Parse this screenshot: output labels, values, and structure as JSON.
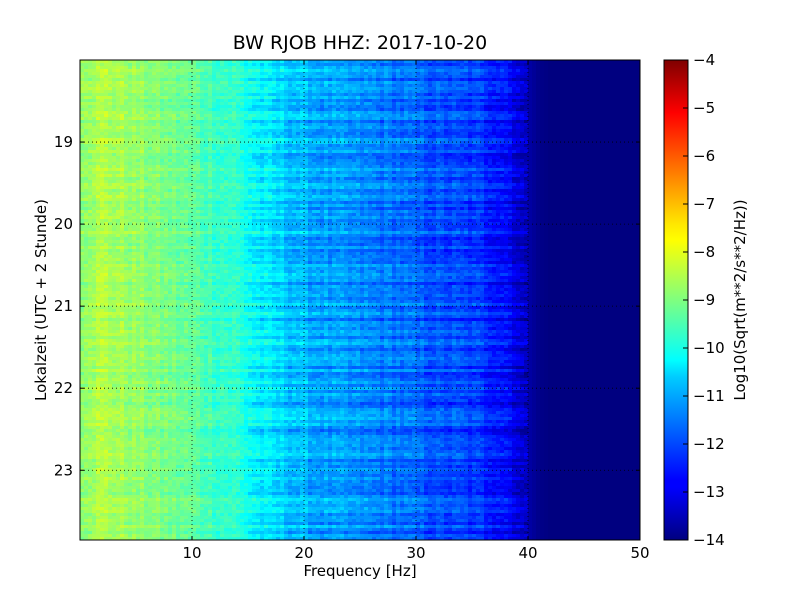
{
  "chart_data": {
    "type": "heatmap",
    "title": "BW RJOB HHZ: 2017-10-20",
    "xlabel": "Frequency [Hz]",
    "ylabel": "Lokalzeit (UTC + 2 Stunde)",
    "xlim": [
      0,
      50
    ],
    "ylim": [
      18.0,
      23.85
    ],
    "y_inverted": true,
    "grid": true,
    "x_ticks": [
      10,
      20,
      30,
      40,
      50
    ],
    "y_ticks": [
      19,
      20,
      21,
      22,
      23
    ],
    "colormap": "jet",
    "colorbar": {
      "label": "Log10(Sqrt(m**2/s**2/Hz))",
      "range": [
        -14,
        -4
      ],
      "ticks": [
        -4,
        -5,
        -6,
        -7,
        -8,
        -9,
        -10,
        -11,
        -12,
        -13,
        -14
      ]
    },
    "spectral_profile": {
      "frequencies_hz": [
        0,
        2,
        5,
        8,
        10,
        12,
        14,
        15,
        16,
        18,
        20,
        22,
        25,
        28,
        30,
        32,
        34,
        36,
        38,
        39,
        40,
        41,
        42,
        45,
        50
      ],
      "log10_amplitude": [
        -8.7,
        -8.5,
        -8.8,
        -9.1,
        -9.3,
        -9.6,
        -9.8,
        -10.1,
        -10.4,
        -10.7,
        -11.0,
        -11.2,
        -11.4,
        -11.6,
        -11.8,
        -12.0,
        -12.1,
        -12.3,
        -12.6,
        -13.0,
        -13.6,
        -13.9,
        -14.0,
        -14.0,
        -14.0
      ]
    }
  }
}
